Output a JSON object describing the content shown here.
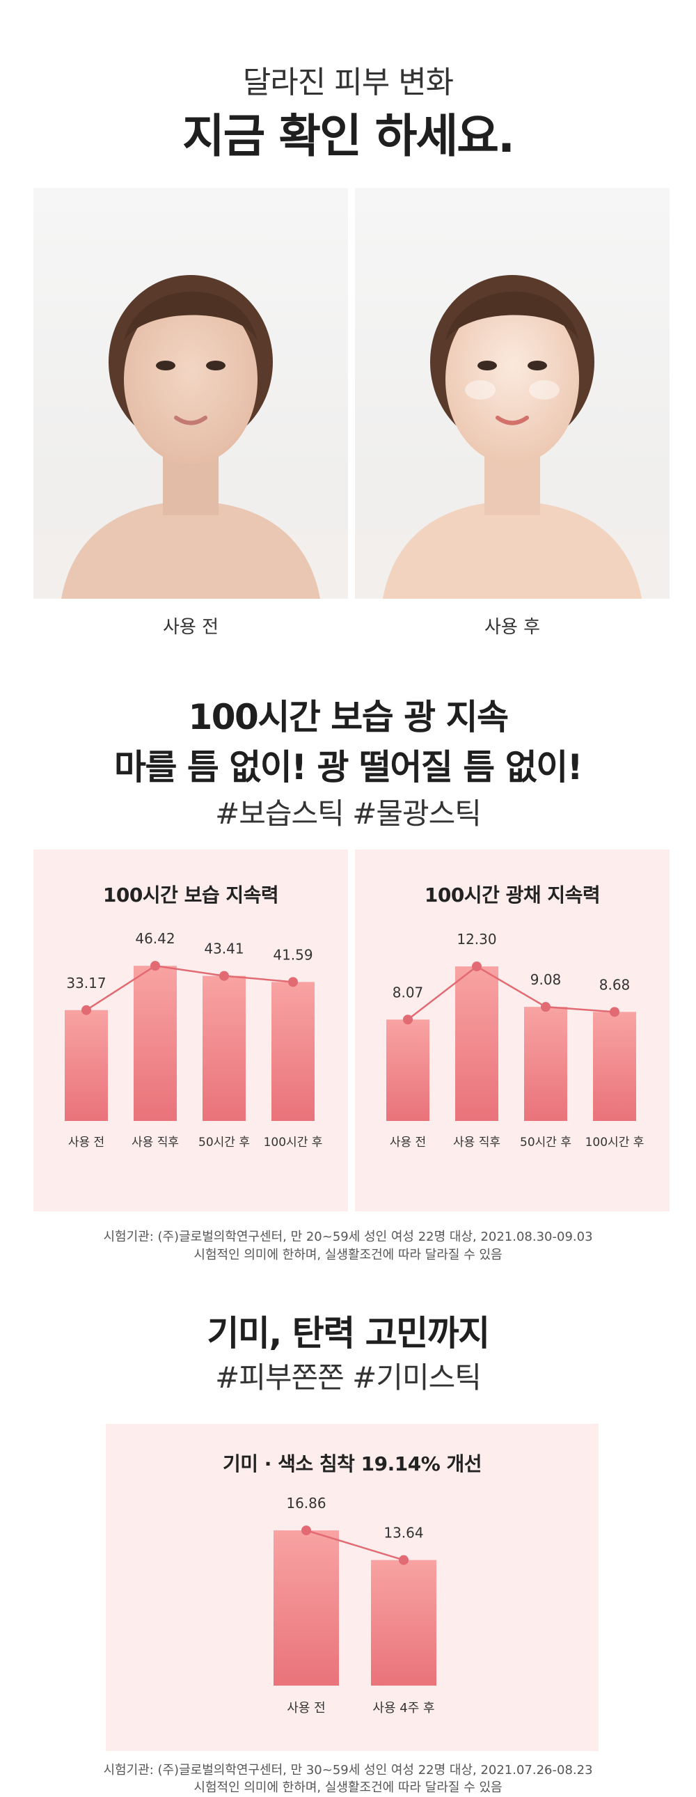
{
  "header": {
    "subtitle": "달라진 피부 변화",
    "title": "지금 확인 하세요."
  },
  "photos": {
    "before_label": "사용 전",
    "after_label": "사용 후"
  },
  "section1": {
    "line1": "100시간 보습 광 지속",
    "line2": "마를 틈 없이! 광 떨어질 틈 없이!",
    "hashtags": "#보습스틱 #물광스틱"
  },
  "chart_data": [
    {
      "type": "bar",
      "title": "100시간 보습 지속력",
      "categories": [
        "사용 전",
        "사용 직후",
        "50시간 후",
        "100시간 후"
      ],
      "values": [
        33.17,
        46.42,
        43.41,
        41.59
      ],
      "value_labels": [
        "33.17",
        "46.42",
        "43.41",
        "41.59"
      ],
      "ylim": [
        0,
        50
      ],
      "overlay_line": true,
      "colors": {
        "bar_top": "#f8a3a3",
        "bar_bottom": "#e9737a",
        "line": "#e26a72",
        "panel": "#fdeeed"
      }
    },
    {
      "type": "bar",
      "title": "100시간 광채 지속력",
      "categories": [
        "사용 전",
        "사용 직후",
        "50시간 후",
        "100시간 후"
      ],
      "values": [
        8.07,
        12.3,
        9.08,
        8.68
      ],
      "value_labels": [
        "8.07",
        "12.30",
        "9.08",
        "8.68"
      ],
      "ylim": [
        0,
        13.3
      ],
      "overlay_line": true,
      "colors": {
        "bar_top": "#f8a3a3",
        "bar_bottom": "#e9737a",
        "line": "#e26a72",
        "panel": "#fdeeed"
      }
    },
    {
      "type": "bar",
      "title": "기미 · 색소 침착 19.14% 개선",
      "categories": [
        "사용 전",
        "사용 4주 후"
      ],
      "values": [
        16.86,
        13.64
      ],
      "value_labels": [
        "16.86",
        "13.64"
      ],
      "ylim": [
        0,
        18
      ],
      "overlay_line": true,
      "colors": {
        "bar_top": "#f8a3a3",
        "bar_bottom": "#e9737a",
        "line": "#e26a72",
        "panel": "#fdeeed"
      }
    }
  ],
  "note1": {
    "line1": "시험기관: (주)글로벌의학연구센터, 만 20~59세 성인 여성 22명 대상, 2021.08.30-09.03",
    "line2": "시험적인 의미에 한하며, 실생활조건에 따라 달라질 수 있음"
  },
  "section2": {
    "title": "기미, 탄력 고민까지",
    "hashtags": "#피부쫀쫀 #기미스틱"
  },
  "note2": {
    "line1": "시험기관: (주)글로벌의학연구센터, 만 30~59세 성인 여성 22명 대상, 2021.07.26-08.23",
    "line2": "시험적인 의미에 한하며, 실생활조건에 따라 달라질 수 있음"
  }
}
